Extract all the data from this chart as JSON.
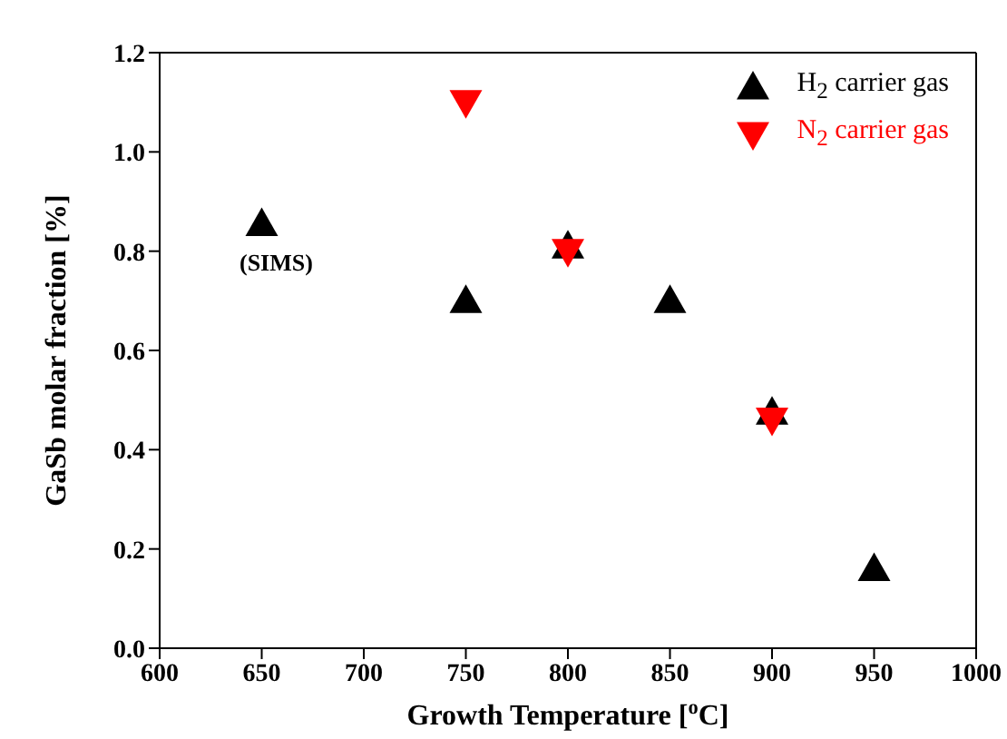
{
  "chart_data": {
    "type": "scatter",
    "xlabel": "Growth Temperature [$^{o}$C]",
    "ylabel": "GaSb molar fraction [%]",
    "xlim": [
      600,
      1000
    ],
    "xticks": [
      600,
      650,
      700,
      750,
      800,
      850,
      900,
      950,
      1000
    ],
    "ylim": [
      0,
      1.2
    ],
    "yticks": [
      {
        "value": 0,
        "label": "0.0"
      },
      {
        "value": 0.2,
        "label": "0.2"
      },
      {
        "value": 0.4,
        "label": "0.4"
      },
      {
        "value": 0.6,
        "label": "0.6"
      },
      {
        "value": 0.8,
        "label": "0.8"
      },
      {
        "value": 1,
        "label": "1.0"
      },
      {
        "value": 1.2,
        "label": "1.2"
      }
    ],
    "legend": "top right",
    "series": [
      {
        "name": "H$_{2}$ carrier gas",
        "color": "#000000",
        "marker": "triangle",
        "x": [
          650,
          750,
          800,
          850,
          900,
          950
        ],
        "values": [
          0.855,
          0.7,
          0.81,
          0.7,
          0.475,
          0.16
        ]
      },
      {
        "name": "N$_{2}$ carrier gas",
        "color": "#ff0000",
        "marker": "triangle_down",
        "x": [
          750,
          800,
          900
        ],
        "values": [
          1.1,
          0.8,
          0.46
        ]
      }
    ],
    "annotations": [
      "(SIMS)"
    ]
  }
}
